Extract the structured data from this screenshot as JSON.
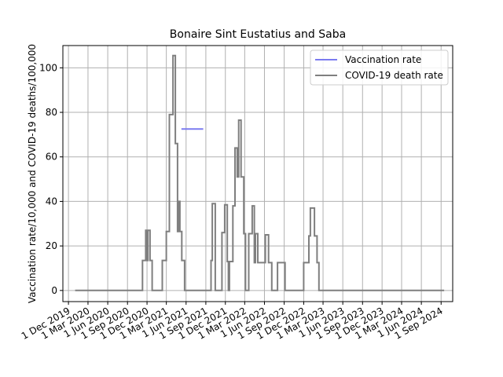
{
  "chart_data": {
    "type": "line",
    "title": "Bonaire Sint Eustatius and Saba",
    "xlabel": "",
    "ylabel": "Vaccination rate/10,000 and COVID-19 deaths/100,000",
    "xlim": [
      "2019-11-05",
      "2024-10-25"
    ],
    "ylim": [
      -5,
      110
    ],
    "yticks": [
      0,
      20,
      40,
      60,
      80,
      100
    ],
    "xticks": [
      {
        "date": "2019-12-01",
        "label": "1 Dec 2019"
      },
      {
        "date": "2020-03-01",
        "label": "1 Mar 2020"
      },
      {
        "date": "2020-06-01",
        "label": "1 Jun 2020"
      },
      {
        "date": "2020-09-01",
        "label": "1 Sep 2020"
      },
      {
        "date": "2020-12-01",
        "label": "1 Dec 2020"
      },
      {
        "date": "2021-03-01",
        "label": "1 Mar 2021"
      },
      {
        "date": "2021-06-01",
        "label": "1 Jun 2021"
      },
      {
        "date": "2021-09-01",
        "label": "1 Sep 2021"
      },
      {
        "date": "2021-12-01",
        "label": "1 Dec 2021"
      },
      {
        "date": "2022-03-01",
        "label": "1 Mar 2022"
      },
      {
        "date": "2022-06-01",
        "label": "1 Jun 2022"
      },
      {
        "date": "2022-09-01",
        "label": "1 Sep 2022"
      },
      {
        "date": "2022-12-01",
        "label": "1 Dec 2022"
      },
      {
        "date": "2023-03-01",
        "label": "1 Mar 2023"
      },
      {
        "date": "2023-06-01",
        "label": "1 Jun 2023"
      },
      {
        "date": "2023-09-01",
        "label": "1 Sep 2023"
      },
      {
        "date": "2023-12-01",
        "label": "1 Dec 2023"
      },
      {
        "date": "2024-03-01",
        "label": "1 Mar 2024"
      },
      {
        "date": "2024-06-01",
        "label": "1 Jun 2024"
      },
      {
        "date": "2024-09-01",
        "label": "1 Sep 2024"
      }
    ],
    "grid": true,
    "legend_position": "top-right",
    "series": [
      {
        "name": "Vaccination rate",
        "color": "#7b7bf0",
        "style": "line",
        "points": [
          [
            "2021-05-10",
            72.5
          ],
          [
            "2021-08-20",
            72.5
          ]
        ]
      },
      {
        "name": "COVID-19 death rate",
        "color": "#7f7f7f",
        "style": "step",
        "points": [
          [
            "2020-01-01",
            0
          ],
          [
            "2020-11-10",
            13.5
          ],
          [
            "2020-11-25",
            27
          ],
          [
            "2020-12-01",
            13.5
          ],
          [
            "2020-12-05",
            27
          ],
          [
            "2020-12-15",
            13.5
          ],
          [
            "2020-12-25",
            0
          ],
          [
            "2021-02-10",
            13.5
          ],
          [
            "2021-03-01",
            26.5
          ],
          [
            "2021-03-15",
            79
          ],
          [
            "2021-04-01",
            105.5
          ],
          [
            "2021-04-12",
            66
          ],
          [
            "2021-04-22",
            26.5
          ],
          [
            "2021-04-27",
            40
          ],
          [
            "2021-05-03",
            26.5
          ],
          [
            "2021-05-12",
            13.5
          ],
          [
            "2021-05-25",
            0
          ],
          [
            "2021-09-25",
            13.5
          ],
          [
            "2021-10-01",
            39
          ],
          [
            "2021-10-15",
            0
          ],
          [
            "2021-11-15",
            26
          ],
          [
            "2021-11-28",
            38.5
          ],
          [
            "2021-12-10",
            13
          ],
          [
            "2021-12-15",
            0
          ],
          [
            "2021-12-20",
            13
          ],
          [
            "2022-01-05",
            38
          ],
          [
            "2022-01-15",
            64
          ],
          [
            "2022-01-25",
            51
          ],
          [
            "2022-02-01",
            76.5
          ],
          [
            "2022-02-12",
            51
          ],
          [
            "2022-02-25",
            25.5
          ],
          [
            "2022-03-05",
            0
          ],
          [
            "2022-03-20",
            25.5
          ],
          [
            "2022-04-05",
            38
          ],
          [
            "2022-04-15",
            12.5
          ],
          [
            "2022-04-20",
            25.5
          ],
          [
            "2022-05-01",
            12.5
          ],
          [
            "2022-06-05",
            25
          ],
          [
            "2022-06-20",
            12.5
          ],
          [
            "2022-07-05",
            0
          ],
          [
            "2022-08-01",
            12.5
          ],
          [
            "2022-09-05",
            0
          ],
          [
            "2022-12-01",
            12.5
          ],
          [
            "2022-12-25",
            24.5
          ],
          [
            "2023-01-01",
            37
          ],
          [
            "2023-01-20",
            24.5
          ],
          [
            "2023-02-01",
            12.5
          ],
          [
            "2023-02-10",
            0
          ],
          [
            "2024-09-15",
            0
          ]
        ]
      }
    ]
  }
}
